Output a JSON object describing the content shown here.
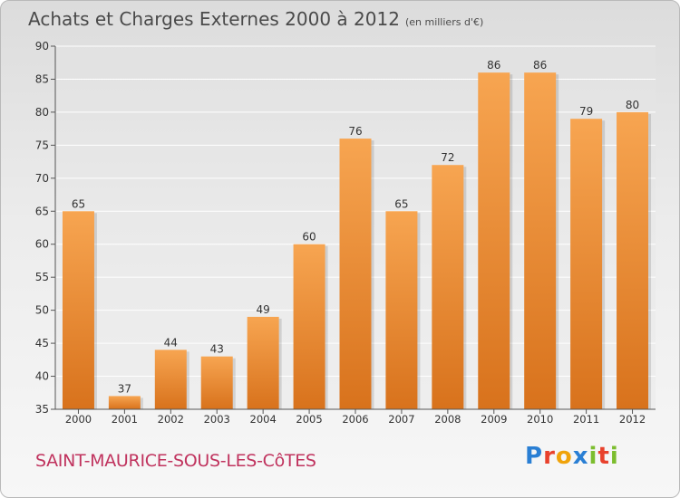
{
  "chart_title": "Achats et Charges Externes 2000 à 2012",
  "chart_subtitle": "(en milliers d'€)",
  "commune_name": "SAINT-MAURICE-SOUS-LES-CôTES",
  "logo": {
    "letters": [
      "P",
      "r",
      "o",
      "x",
      "i",
      "t",
      "i"
    ],
    "colors": [
      "#2a7fd4",
      "#e8412c",
      "#f0a30a",
      "#2a7fd4",
      "#7cbd2e",
      "#e8412c",
      "#7cbd2e"
    ]
  },
  "colors": {
    "bar_top": "#f7a551",
    "bar_bottom": "#d8721c",
    "axis": "#555555",
    "grid": "#ffffff",
    "text": "#333333"
  },
  "chart_data": {
    "type": "bar",
    "title": "Achats et Charges Externes 2000 à 2012",
    "subtitle": "(en milliers d'€)",
    "categories": [
      "2000",
      "2001",
      "2002",
      "2003",
      "2004",
      "2005",
      "2006",
      "2007",
      "2008",
      "2009",
      "2010",
      "2011",
      "2012"
    ],
    "values": [
      65,
      37,
      44,
      43,
      49,
      60,
      76,
      65,
      72,
      86,
      86,
      79,
      80
    ],
    "ylim": [
      35,
      90
    ],
    "yticks": [
      35,
      40,
      45,
      50,
      55,
      60,
      65,
      70,
      75,
      80,
      85,
      90
    ],
    "data_labels": true,
    "grid": true,
    "legend": "none"
  }
}
